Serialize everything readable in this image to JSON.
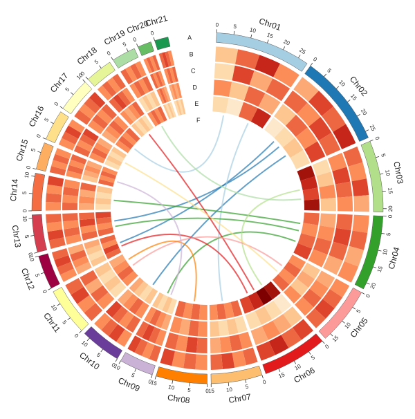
{
  "chart_data": {
    "type": "circos",
    "track_labels": [
      "A",
      "B",
      "C",
      "D",
      "E",
      "F"
    ],
    "heat_lim": [
      0,
      10
    ],
    "chromosomes": [
      {
        "name": "Chr01",
        "length": 28,
        "color": "#a6cee3",
        "ticks": [
          0,
          5,
          10,
          15,
          20,
          25
        ],
        "heat": [
          [
            3,
            6,
            8,
            5
          ],
          [
            2,
            7,
            4,
            6
          ],
          [
            5,
            3,
            6,
            4
          ],
          [
            2,
            1,
            6,
            8
          ]
        ]
      },
      {
        "name": "Chr02",
        "length": 27,
        "color": "#1f78b4",
        "ticks": [
          0,
          5,
          10,
          15,
          20,
          25
        ],
        "heat": [
          [
            4,
            7,
            6,
            8
          ],
          [
            6,
            5,
            7,
            6
          ],
          [
            3,
            6,
            5,
            7
          ],
          [
            1,
            2,
            3,
            2
          ]
        ]
      },
      {
        "name": "Chr03",
        "length": 21,
        "color": "#b2df8a",
        "ticks": [
          0,
          5,
          10,
          15,
          20
        ],
        "heat": [
          [
            6,
            5,
            7,
            4
          ],
          [
            5,
            7,
            6,
            5
          ],
          [
            2,
            3,
            5,
            3
          ],
          [
            9,
            8,
            7,
            9
          ]
        ]
      },
      {
        "name": "Chr04",
        "length": 22,
        "color": "#33a02c",
        "ticks": [
          0,
          5,
          10,
          15,
          20
        ],
        "heat": [
          [
            5,
            6,
            4,
            5
          ],
          [
            6,
            7,
            6,
            4
          ],
          [
            4,
            5,
            6,
            5
          ],
          [
            6,
            5,
            6,
            7
          ]
        ]
      },
      {
        "name": "Chr05",
        "length": 17,
        "color": "#fb9a99",
        "ticks": [
          0,
          5,
          10,
          15
        ],
        "heat": [
          [
            5,
            6,
            7,
            6
          ],
          [
            4,
            5,
            6,
            5
          ],
          [
            3,
            4,
            3,
            5
          ],
          [
            5,
            6,
            5,
            6
          ]
        ]
      },
      {
        "name": "Chr06",
        "length": 19,
        "color": "#e31a1c",
        "ticks": [
          0,
          5,
          10,
          15
        ],
        "heat": [
          [
            7,
            6,
            8,
            7
          ],
          [
            3,
            4,
            5,
            4
          ],
          [
            1,
            2,
            3,
            2
          ],
          [
            9,
            10,
            8,
            7
          ]
        ]
      },
      {
        "name": "Chr07",
        "length": 15,
        "color": "#fdbf6f",
        "ticks": [
          0,
          5,
          10,
          15
        ],
        "heat": [
          [
            6,
            5,
            7,
            6
          ],
          [
            5,
            6,
            5,
            4
          ],
          [
            2,
            3,
            2,
            3
          ],
          [
            6,
            5,
            6,
            5
          ]
        ]
      },
      {
        "name": "Chr08",
        "length": 15,
        "color": "#ff7f00",
        "ticks": [
          0,
          5,
          10,
          15
        ],
        "heat": [
          [
            5,
            6,
            5,
            7
          ],
          [
            6,
            7,
            5,
            6
          ],
          [
            5,
            6,
            4,
            5
          ],
          [
            5,
            6,
            5,
            6
          ]
        ]
      },
      {
        "name": "Chr09",
        "length": 10,
        "color": "#cab2d6",
        "ticks": [
          0,
          5,
          10
        ],
        "heat": [
          [
            6,
            5,
            6,
            7
          ],
          [
            5,
            6,
            7,
            6
          ],
          [
            4,
            5,
            6,
            5
          ],
          [
            2,
            3,
            2,
            3
          ]
        ]
      },
      {
        "name": "Chr10",
        "length": 12,
        "color": "#6a3d9a",
        "ticks": [
          0,
          5,
          10
        ],
        "heat": [
          [
            5,
            7,
            6,
            5
          ],
          [
            6,
            5,
            6,
            7
          ],
          [
            5,
            6,
            5,
            4
          ],
          [
            3,
            2,
            3,
            4
          ]
        ]
      },
      {
        "name": "Chr11",
        "length": 14,
        "color": "#ffff99",
        "ticks": [
          0,
          5,
          10
        ],
        "heat": [
          [
            6,
            5,
            7,
            6
          ],
          [
            5,
            6,
            4,
            6
          ],
          [
            2,
            3,
            2,
            3
          ],
          [
            5,
            6,
            5,
            4
          ]
        ]
      },
      {
        "name": "Chr12",
        "length": 10,
        "color": "#9e0142",
        "ticks": [
          0,
          5,
          10
        ],
        "heat": [
          [
            5,
            6,
            7,
            6
          ],
          [
            4,
            5,
            6,
            4
          ],
          [
            3,
            2,
            3,
            4
          ],
          [
            6,
            7,
            5,
            6
          ]
        ]
      },
      {
        "name": "Chr13",
        "length": 11,
        "color": "#d53e4f",
        "ticks": [
          0,
          5,
          10
        ],
        "heat": [
          [
            6,
            7,
            5,
            6
          ],
          [
            5,
            6,
            5,
            6
          ],
          [
            6,
            5,
            7,
            6
          ],
          [
            6,
            5,
            6,
            7
          ]
        ]
      },
      {
        "name": "Chr14",
        "length": 11,
        "color": "#f46d43",
        "ticks": [
          0,
          5,
          10
        ],
        "heat": [
          [
            5,
            6,
            5,
            7
          ],
          [
            6,
            5,
            6,
            5
          ],
          [
            4,
            5,
            4,
            6
          ],
          [
            2,
            3,
            2,
            3
          ]
        ]
      },
      {
        "name": "Chr15",
        "length": 8,
        "color": "#fdae61",
        "ticks": [
          0,
          5
        ],
        "heat": [
          [
            6,
            5,
            6,
            5
          ],
          [
            5,
            6,
            5,
            6
          ],
          [
            3,
            4,
            5,
            4
          ],
          [
            6,
            5,
            6,
            5
          ]
        ]
      },
      {
        "name": "Chr16",
        "length": 9,
        "color": "#fee08b",
        "ticks": [
          0,
          5
        ],
        "heat": [
          [
            5,
            6,
            7,
            5
          ],
          [
            6,
            5,
            6,
            7
          ],
          [
            5,
            6,
            5,
            4
          ],
          [
            2,
            3,
            2,
            3
          ]
        ]
      },
      {
        "name": "Chr17",
        "length": 10,
        "color": "#ffffbf",
        "ticks": [
          0,
          5,
          10
        ],
        "heat": [
          [
            6,
            5,
            6,
            7
          ],
          [
            5,
            6,
            5,
            6
          ],
          [
            4,
            5,
            6,
            5
          ],
          [
            5,
            6,
            5,
            6
          ]
        ]
      },
      {
        "name": "Chr18",
        "length": 8,
        "color": "#e6f598",
        "ticks": [
          0,
          5
        ],
        "heat": [
          [
            5,
            6,
            5,
            6
          ],
          [
            6,
            7,
            6,
            5
          ],
          [
            5,
            4,
            5,
            6
          ],
          [
            3,
            2,
            3,
            2
          ]
        ]
      },
      {
        "name": "Chr19",
        "length": 7,
        "color": "#abdda4",
        "ticks": [
          0,
          5
        ],
        "heat": [
          [
            6,
            5,
            6,
            5
          ],
          [
            5,
            6,
            5,
            6
          ],
          [
            2,
            3,
            2,
            3
          ],
          [
            5,
            6,
            5,
            6
          ]
        ]
      },
      {
        "name": "Chr20",
        "length": 4,
        "color": "#66bd63",
        "ticks": [
          0
        ],
        "heat": [
          [
            5,
            6,
            5,
            6
          ],
          [
            6,
            5,
            6,
            5
          ],
          [
            5,
            6,
            5,
            4
          ],
          [
            3,
            2,
            3,
            2
          ]
        ]
      },
      {
        "name": "Chr21",
        "length": 4,
        "color": "#1a9850",
        "ticks": [
          0
        ],
        "heat": [
          [
            6,
            7,
            6,
            5
          ],
          [
            5,
            6,
            5,
            6
          ],
          [
            4,
            5,
            4,
            5
          ],
          [
            2,
            3,
            2,
            3
          ]
        ]
      }
    ],
    "links": [
      {
        "from": "Chr02",
        "from_pos": 12,
        "to": "Chr13",
        "to_pos": 6
      },
      {
        "from": "Chr02",
        "from_pos": 8,
        "to": "Chr12",
        "to_pos": 5
      },
      {
        "from": "Chr02",
        "from_pos": 18,
        "to": "Chr10",
        "to_pos": 4
      },
      {
        "from": "Chr01",
        "from_pos": 20,
        "to": "Chr07",
        "to_pos": 8
      },
      {
        "from": "Chr01",
        "from_pos": 6,
        "to": "Chr17",
        "to_pos": 4
      },
      {
        "from": "Chr04",
        "from_pos": 6,
        "to": "Chr14",
        "to_pos": 5
      },
      {
        "from": "Chr04",
        "from_pos": 10,
        "to": "Chr13",
        "to_pos": 3
      },
      {
        "from": "Chr04",
        "from_pos": 16,
        "to": "Chr09",
        "to_pos": 6
      },
      {
        "from": "Chr03",
        "from_pos": 10,
        "to": "Chr06",
        "to_pos": 5
      },
      {
        "from": "Chr06",
        "from_pos": 14,
        "to": "Chr12",
        "to_pos": 3
      },
      {
        "from": "Chr06",
        "from_pos": 10,
        "to": "Chr18",
        "to_pos": 4
      },
      {
        "from": "Chr05",
        "from_pos": 8,
        "to": "Chr11",
        "to_pos": 6
      },
      {
        "from": "Chr08",
        "from_pos": 7,
        "to": "Chr11",
        "to_pos": 10
      },
      {
        "from": "Chr09",
        "from_pos": 4,
        "to": "Chr15",
        "to_pos": 3
      },
      {
        "from": "Chr19",
        "from_pos": 3,
        "to": "Chr03",
        "to_pos": 15
      },
      {
        "from": "Chr16",
        "from_pos": 5,
        "to": "Chr05",
        "to_pos": 12
      }
    ]
  }
}
